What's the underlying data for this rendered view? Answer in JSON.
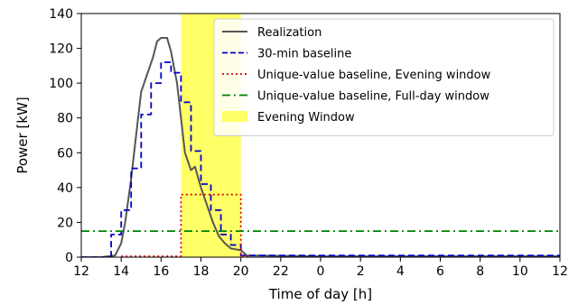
{
  "chart_data": {
    "type": "line",
    "title": "",
    "xlabel": "Time of day [h]",
    "ylabel": "Power [kW]",
    "xlim": [
      12,
      36
    ],
    "ylim": [
      0,
      140
    ],
    "xticks": [
      12,
      14,
      16,
      18,
      20,
      22,
      24,
      26,
      28,
      30,
      32,
      34,
      36
    ],
    "xtick_labels": [
      "12",
      "14",
      "16",
      "18",
      "20",
      "22",
      "0",
      "2",
      "4",
      "6",
      "8",
      "10",
      "12"
    ],
    "yticks": [
      0,
      20,
      40,
      60,
      80,
      100,
      120,
      140
    ],
    "ytick_labels": [
      "0",
      "20",
      "40",
      "60",
      "80",
      "100",
      "120",
      "140"
    ],
    "grid": false,
    "legend_position": "top-right",
    "shaded_region": {
      "name": "Evening Window",
      "x_start": 17,
      "x_end": 20,
      "color": "#ffff66"
    },
    "series": [
      {
        "name": "Realization",
        "style": "solid",
        "color": "#555555",
        "x": [
          12,
          13,
          13.7,
          14,
          14.2,
          14.5,
          14.8,
          15,
          15.3,
          15.6,
          15.8,
          16,
          16.3,
          16.5,
          16.8,
          17,
          17.2,
          17.5,
          17.7,
          18,
          18.3,
          18.6,
          18.9,
          19.2,
          19.5,
          20,
          20.3,
          24,
          28,
          32,
          36
        ],
        "y": [
          0,
          0,
          1,
          8,
          20,
          45,
          75,
          95,
          105,
          115,
          124,
          126,
          126,
          118,
          100,
          80,
          60,
          50,
          52,
          40,
          30,
          20,
          12,
          8,
          5,
          4,
          1,
          0.5,
          0.5,
          0.5,
          0.5
        ]
      },
      {
        "name": "30-min baseline",
        "style": "dashed",
        "color": "#0000cc",
        "x": [
          12,
          13.5,
          13.5,
          14,
          14,
          14.5,
          14.5,
          15,
          15,
          15.5,
          15.5,
          16,
          16,
          16.5,
          16.5,
          17,
          17,
          17.5,
          17.5,
          18,
          18,
          18.5,
          18.5,
          19,
          19,
          19.5,
          19.5,
          20,
          20,
          36
        ],
        "y": [
          0,
          0,
          13,
          13,
          27,
          27,
          51,
          51,
          82,
          82,
          100,
          100,
          112,
          112,
          106,
          106,
          89,
          89,
          61,
          61,
          42,
          42,
          27,
          27,
          13,
          13,
          7,
          7,
          1,
          1
        ]
      },
      {
        "name": "Unique-value baseline, Evening window",
        "style": "dotted",
        "color": "#dd0000",
        "x": [
          14,
          17,
          17,
          20,
          20,
          20.5
        ],
        "y": [
          0.5,
          0.5,
          36,
          36,
          0.5,
          0.5
        ]
      },
      {
        "name": "Unique-value baseline, Full-day window",
        "style": "dashdot",
        "color": "#008000",
        "x": [
          12,
          36
        ],
        "y": [
          15,
          15
        ]
      }
    ]
  }
}
